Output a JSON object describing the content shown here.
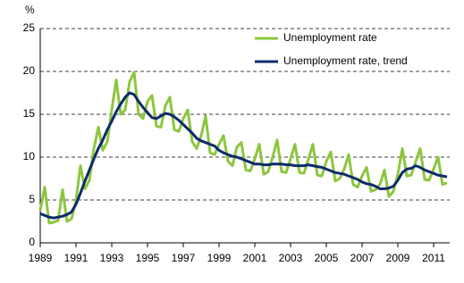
{
  "chart_data": {
    "type": "line",
    "y_label": "%",
    "x": [
      1989,
      1989.25,
      1989.5,
      1989.75,
      1990,
      1990.25,
      1990.5,
      1990.75,
      1991,
      1991.25,
      1991.5,
      1991.75,
      1992,
      1992.25,
      1992.5,
      1992.75,
      1993,
      1993.25,
      1993.5,
      1993.75,
      1994,
      1994.25,
      1994.5,
      1994.75,
      1995,
      1995.25,
      1995.5,
      1995.75,
      1996,
      1996.25,
      1996.5,
      1996.75,
      1997,
      1997.25,
      1997.5,
      1997.75,
      1998,
      1998.25,
      1998.5,
      1998.75,
      1999,
      1999.25,
      1999.5,
      1999.75,
      2000,
      2000.25,
      2000.5,
      2000.75,
      2001,
      2001.25,
      2001.5,
      2001.75,
      2002,
      2002.25,
      2002.5,
      2002.75,
      2003,
      2003.25,
      2003.5,
      2003.75,
      2004,
      2004.25,
      2004.5,
      2004.75,
      2005,
      2005.25,
      2005.5,
      2005.75,
      2006,
      2006.25,
      2006.5,
      2006.75,
      2007,
      2007.25,
      2007.5,
      2007.75,
      2008,
      2008.25,
      2008.5,
      2008.75,
      2009,
      2009.25,
      2009.5,
      2009.75,
      2010,
      2010.25,
      2010.5,
      2010.75,
      2011,
      2011.25,
      2011.5,
      2011.75
    ],
    "series": [
      {
        "name": "Unemployment rate",
        "color": "#8dc63f",
        "width": 3,
        "values": [
          3.8,
          6.5,
          2.3,
          2.4,
          2.6,
          6.2,
          2.5,
          2.8,
          4.9,
          9.0,
          6.3,
          7.3,
          11.0,
          13.5,
          10.8,
          11.8,
          15.5,
          19.0,
          15.0,
          15.5,
          18.8,
          19.9,
          15.0,
          14.5,
          16.5,
          17.2,
          13.6,
          13.5,
          16.0,
          17.0,
          13.2,
          13.0,
          14.5,
          15.5,
          11.8,
          11.0,
          12.5,
          14.8,
          10.5,
          10.3,
          11.5,
          12.5,
          9.5,
          9.0,
          11.2,
          11.7,
          8.5,
          8.4,
          9.8,
          11.5,
          8.0,
          8.3,
          10.0,
          12.0,
          8.3,
          8.2,
          9.8,
          11.5,
          8.2,
          8.1,
          9.8,
          11.5,
          7.9,
          7.8,
          9.5,
          10.6,
          7.2,
          7.5,
          8.6,
          10.3,
          6.8,
          6.5,
          7.8,
          8.8,
          6.0,
          6.2,
          6.8,
          8.5,
          5.4,
          6.0,
          8.0,
          11.0,
          7.8,
          7.9,
          9.5,
          11.0,
          7.4,
          7.3,
          8.6,
          10.0,
          6.8,
          7.0
        ]
      },
      {
        "name": "Unemployment rate, trend",
        "color": "#0d2b6b",
        "width": 3,
        "values": [
          3.4,
          3.2,
          3.0,
          2.9,
          3.0,
          3.1,
          3.3,
          3.6,
          4.5,
          5.8,
          7.2,
          8.5,
          9.8,
          11.0,
          12.0,
          13.2,
          14.2,
          15.3,
          16.2,
          17.0,
          17.5,
          17.3,
          16.5,
          15.8,
          15.2,
          14.6,
          14.5,
          14.8,
          15.1,
          15.0,
          14.7,
          14.3,
          13.8,
          13.3,
          12.8,
          12.2,
          11.9,
          11.7,
          11.5,
          11.3,
          10.8,
          10.5,
          10.3,
          10.1,
          10.0,
          9.8,
          9.6,
          9.4,
          9.2,
          9.2,
          9.1,
          9.1,
          9.2,
          9.2,
          9.2,
          9.1,
          9.1,
          9.0,
          9.0,
          9.0,
          9.1,
          9.0,
          8.9,
          8.8,
          8.6,
          8.4,
          8.2,
          8.1,
          8.0,
          7.8,
          7.6,
          7.4,
          7.1,
          6.9,
          6.8,
          6.6,
          6.3,
          6.3,
          6.4,
          6.6,
          7.3,
          8.2,
          8.6,
          8.7,
          9.0,
          8.8,
          8.5,
          8.3,
          8.1,
          7.9,
          7.8,
          7.7
        ]
      }
    ],
    "xlim": [
      1989,
      2011.9
    ],
    "xticks": [
      1989,
      1991,
      1993,
      1995,
      1997,
      1999,
      2001,
      2003,
      2005,
      2007,
      2009,
      2011
    ],
    "ylim": [
      0,
      25
    ],
    "yticks": [
      0,
      5,
      10,
      15,
      20,
      25
    ],
    "grid": true,
    "legend": "top-right"
  }
}
